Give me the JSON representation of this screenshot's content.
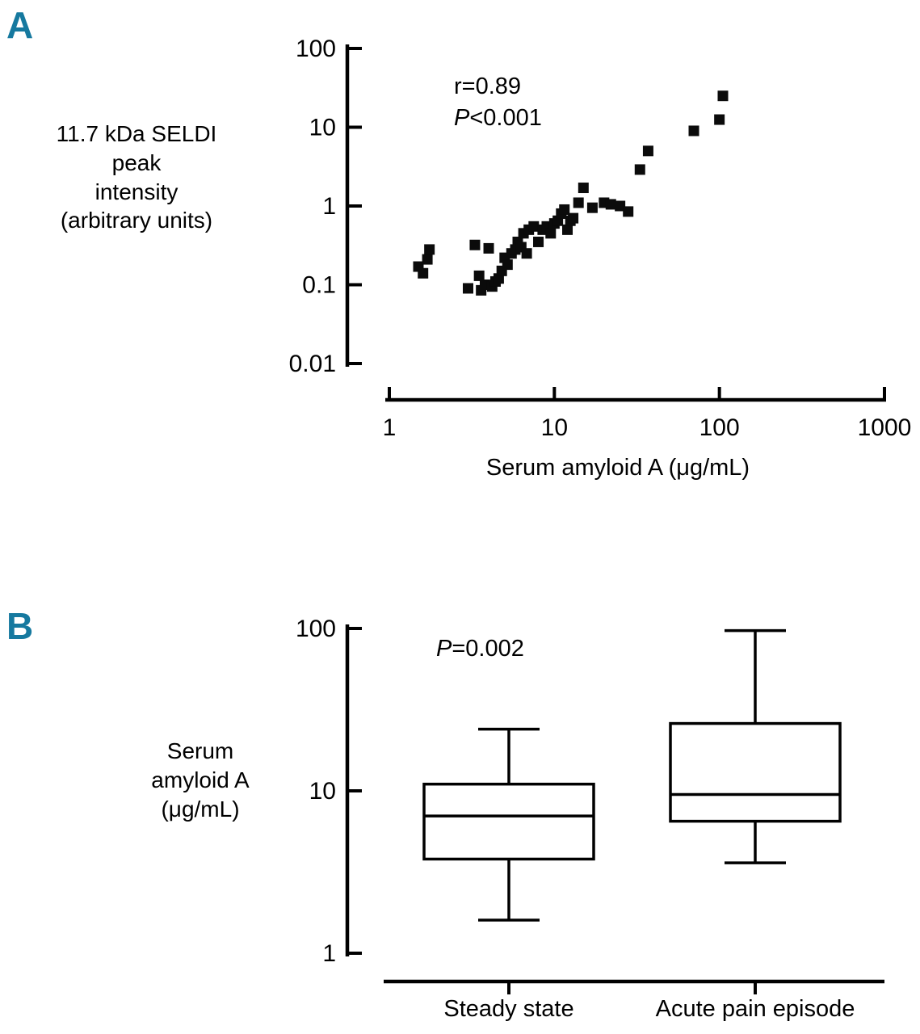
{
  "panels": {
    "a_label": "A",
    "b_label": "B"
  },
  "panel_a": {
    "y_axis_label_lines": [
      "11.7 kDa SELDI",
      "peak",
      "intensity",
      "(arbitrary units)"
    ],
    "annotation_r": "r=0.89",
    "annotation_p_italic": "P",
    "annotation_p_rest": "<0.001",
    "x_axis_title": "Serum amyloid A (μg/mL)"
  },
  "panel_b": {
    "y_axis_label_lines": [
      "Serum",
      "amyloid A",
      "(μg/mL)"
    ],
    "annotation_p_italic": "P",
    "annotation_p_rest": "=0.002",
    "categories": [
      "Steady state",
      "Acute pain episode"
    ]
  },
  "colors": {
    "panel_letter": "#16799f",
    "ink": "#000000"
  },
  "chart_data": [
    {
      "type": "scatter",
      "title": "",
      "xlabel": "Serum amyloid A (μg/mL)",
      "ylabel": "11.7 kDa SELDI peak intensity (arbitrary units)",
      "x_scale": "log",
      "y_scale": "log",
      "xlim": [
        1,
        1000
      ],
      "ylim": [
        0.01,
        100
      ],
      "x_ticks": [
        1,
        10,
        100,
        1000
      ],
      "y_ticks": [
        100,
        10,
        1,
        0.1,
        0.01
      ],
      "annotation": "r=0.89, P<0.001",
      "points": [
        [
          1.5,
          0.17
        ],
        [
          1.6,
          0.14
        ],
        [
          1.7,
          0.21
        ],
        [
          1.75,
          0.28
        ],
        [
          3.0,
          0.09
        ],
        [
          3.3,
          0.32
        ],
        [
          3.5,
          0.13
        ],
        [
          3.6,
          0.085
        ],
        [
          3.8,
          0.1
        ],
        [
          4.0,
          0.29
        ],
        [
          4.2,
          0.095
        ],
        [
          4.4,
          0.11
        ],
        [
          4.6,
          0.12
        ],
        [
          4.8,
          0.15
        ],
        [
          5.0,
          0.22
        ],
        [
          5.2,
          0.18
        ],
        [
          5.5,
          0.25
        ],
        [
          5.8,
          0.28
        ],
        [
          6.0,
          0.35
        ],
        [
          6.3,
          0.3
        ],
        [
          6.5,
          0.45
        ],
        [
          6.8,
          0.25
        ],
        [
          7.0,
          0.5
        ],
        [
          7.5,
          0.55
        ],
        [
          8.0,
          0.35
        ],
        [
          8.5,
          0.5
        ],
        [
          9.0,
          0.55
        ],
        [
          9.5,
          0.45
        ],
        [
          10,
          0.6
        ],
        [
          10.5,
          0.65
        ],
        [
          11,
          0.8
        ],
        [
          11.5,
          0.9
        ],
        [
          12,
          0.5
        ],
        [
          12.5,
          0.65
        ],
        [
          13,
          0.7
        ],
        [
          14,
          1.1
        ],
        [
          15,
          1.7
        ],
        [
          17,
          0.95
        ],
        [
          20,
          1.1
        ],
        [
          22,
          1.05
        ],
        [
          25,
          1.0
        ],
        [
          28,
          0.85
        ],
        [
          33,
          2.9
        ],
        [
          37,
          5.0
        ],
        [
          70,
          9.0
        ],
        [
          100,
          12.5
        ],
        [
          105,
          25
        ]
      ]
    },
    {
      "type": "box",
      "title": "",
      "ylabel": "Serum amyloid A (μg/mL)",
      "y_scale": "log",
      "ylim": [
        1,
        100
      ],
      "y_ticks": [
        100,
        10,
        1
      ],
      "annotation": "P=0.002",
      "categories": [
        "Steady state",
        "Acute pain episode"
      ],
      "boxes": [
        {
          "category": "Steady state",
          "whisker_low": 1.6,
          "q1": 3.8,
          "median": 7.0,
          "q3": 11,
          "whisker_high": 24
        },
        {
          "category": "Acute pain episode",
          "whisker_low": 3.6,
          "q1": 6.5,
          "median": 9.5,
          "q3": 26,
          "whisker_high": 97
        }
      ]
    }
  ]
}
